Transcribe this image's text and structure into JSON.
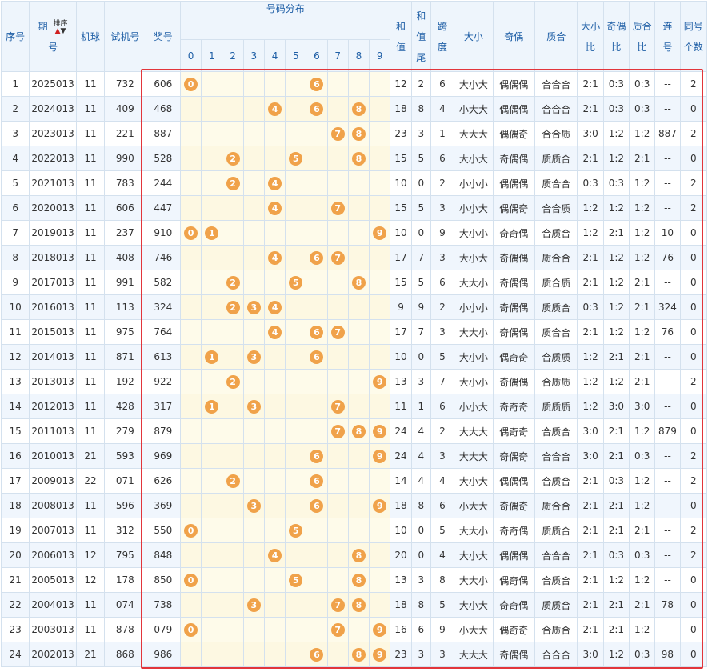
{
  "headers": {
    "idx": "序号",
    "period_top": "期",
    "period_bottom": "号",
    "sort_label": "排序",
    "machine": "机球",
    "test": "试机号",
    "prize": "奖号",
    "dist": "号码分布",
    "digits": [
      "0",
      "1",
      "2",
      "3",
      "4",
      "5",
      "6",
      "7",
      "8",
      "9"
    ],
    "sum_top": "和",
    "sum_bottom": "值",
    "tail_1": "和",
    "tail_2": "值",
    "tail_3": "尾",
    "span_top": "跨",
    "span_bottom": "度",
    "size": "大小",
    "parity": "奇偶",
    "prime": "质合",
    "size_ratio_top": "大小",
    "size_ratio_bottom": "比",
    "parity_ratio_top": "奇偶",
    "parity_ratio_bottom": "比",
    "prime_ratio_top": "质合",
    "prime_ratio_bottom": "比",
    "consec_top": "连",
    "consec_bottom": "号",
    "same_top": "同号",
    "same_bottom": "个数"
  },
  "rows": [
    {
      "idx": "1",
      "period": "2025013",
      "machine": "11",
      "test": "732",
      "prize": "606",
      "balls": [
        "0",
        "6"
      ],
      "sum": "12",
      "tail": "2",
      "span": "6",
      "size": "大小大",
      "parity": "偶偶偶",
      "prime": "合合合",
      "sr": "2:1",
      "pr": "0:3",
      "qr": "0:3",
      "consec": "--",
      "same": "2"
    },
    {
      "idx": "2",
      "period": "2024013",
      "machine": "11",
      "test": "409",
      "prize": "468",
      "balls": [
        "4",
        "6",
        "8"
      ],
      "sum": "18",
      "tail": "8",
      "span": "4",
      "size": "小大大",
      "parity": "偶偶偶",
      "prime": "合合合",
      "sr": "2:1",
      "pr": "0:3",
      "qr": "0:3",
      "consec": "--",
      "same": "0"
    },
    {
      "idx": "3",
      "period": "2023013",
      "machine": "11",
      "test": "221",
      "prize": "887",
      "balls": [
        "7",
        "8"
      ],
      "sum": "23",
      "tail": "3",
      "span": "1",
      "size": "大大大",
      "parity": "偶偶奇",
      "prime": "合合质",
      "sr": "3:0",
      "pr": "1:2",
      "qr": "1:2",
      "consec": "887",
      "same": "2"
    },
    {
      "idx": "4",
      "period": "2022013",
      "machine": "11",
      "test": "990",
      "prize": "528",
      "balls": [
        "2",
        "5",
        "8"
      ],
      "sum": "15",
      "tail": "5",
      "span": "6",
      "size": "大小大",
      "parity": "奇偶偶",
      "prime": "质质合",
      "sr": "2:1",
      "pr": "1:2",
      "qr": "2:1",
      "consec": "--",
      "same": "0"
    },
    {
      "idx": "5",
      "period": "2021013",
      "machine": "11",
      "test": "783",
      "prize": "244",
      "balls": [
        "2",
        "4"
      ],
      "sum": "10",
      "tail": "0",
      "span": "2",
      "size": "小小小",
      "parity": "偶偶偶",
      "prime": "质合合",
      "sr": "0:3",
      "pr": "0:3",
      "qr": "1:2",
      "consec": "--",
      "same": "2"
    },
    {
      "idx": "6",
      "period": "2020013",
      "machine": "11",
      "test": "606",
      "prize": "447",
      "balls": [
        "4",
        "7"
      ],
      "sum": "15",
      "tail": "5",
      "span": "3",
      "size": "小小大",
      "parity": "偶偶奇",
      "prime": "合合质",
      "sr": "1:2",
      "pr": "1:2",
      "qr": "1:2",
      "consec": "--",
      "same": "2"
    },
    {
      "idx": "7",
      "period": "2019013",
      "machine": "11",
      "test": "237",
      "prize": "910",
      "balls": [
        "0",
        "1",
        "9"
      ],
      "sum": "10",
      "tail": "0",
      "span": "9",
      "size": "大小小",
      "parity": "奇奇偶",
      "prime": "合质合",
      "sr": "1:2",
      "pr": "2:1",
      "qr": "1:2",
      "consec": "10",
      "same": "0"
    },
    {
      "idx": "8",
      "period": "2018013",
      "machine": "11",
      "test": "408",
      "prize": "746",
      "balls": [
        "4",
        "6",
        "7"
      ],
      "sum": "17",
      "tail": "7",
      "span": "3",
      "size": "大小大",
      "parity": "奇偶偶",
      "prime": "质合合",
      "sr": "2:1",
      "pr": "1:2",
      "qr": "1:2",
      "consec": "76",
      "same": "0"
    },
    {
      "idx": "9",
      "period": "2017013",
      "machine": "11",
      "test": "991",
      "prize": "582",
      "balls": [
        "2",
        "5",
        "8"
      ],
      "sum": "15",
      "tail": "5",
      "span": "6",
      "size": "大大小",
      "parity": "奇偶偶",
      "prime": "质合质",
      "sr": "2:1",
      "pr": "1:2",
      "qr": "2:1",
      "consec": "--",
      "same": "0"
    },
    {
      "idx": "10",
      "period": "2016013",
      "machine": "11",
      "test": "113",
      "prize": "324",
      "balls": [
        "2",
        "3",
        "4"
      ],
      "sum": "9",
      "tail": "9",
      "span": "2",
      "size": "小小小",
      "parity": "奇偶偶",
      "prime": "质质合",
      "sr": "0:3",
      "pr": "1:2",
      "qr": "2:1",
      "consec": "324",
      "same": "0"
    },
    {
      "idx": "11",
      "period": "2015013",
      "machine": "11",
      "test": "975",
      "prize": "764",
      "balls": [
        "4",
        "6",
        "7"
      ],
      "sum": "17",
      "tail": "7",
      "span": "3",
      "size": "大大小",
      "parity": "奇偶偶",
      "prime": "质合合",
      "sr": "2:1",
      "pr": "1:2",
      "qr": "1:2",
      "consec": "76",
      "same": "0"
    },
    {
      "idx": "12",
      "period": "2014013",
      "machine": "11",
      "test": "871",
      "prize": "613",
      "balls": [
        "1",
        "3",
        "6"
      ],
      "sum": "10",
      "tail": "0",
      "span": "5",
      "size": "大小小",
      "parity": "偶奇奇",
      "prime": "合质质",
      "sr": "1:2",
      "pr": "2:1",
      "qr": "2:1",
      "consec": "--",
      "same": "0"
    },
    {
      "idx": "13",
      "period": "2013013",
      "machine": "11",
      "test": "192",
      "prize": "922",
      "balls": [
        "2",
        "9"
      ],
      "sum": "13",
      "tail": "3",
      "span": "7",
      "size": "大小小",
      "parity": "奇偶偶",
      "prime": "合质质",
      "sr": "1:2",
      "pr": "1:2",
      "qr": "2:1",
      "consec": "--",
      "same": "2"
    },
    {
      "idx": "14",
      "period": "2012013",
      "machine": "11",
      "test": "428",
      "prize": "317",
      "balls": [
        "1",
        "3",
        "7"
      ],
      "sum": "11",
      "tail": "1",
      "span": "6",
      "size": "小小大",
      "parity": "奇奇奇",
      "prime": "质质质",
      "sr": "1:2",
      "pr": "3:0",
      "qr": "3:0",
      "consec": "--",
      "same": "0"
    },
    {
      "idx": "15",
      "period": "2011013",
      "machine": "11",
      "test": "279",
      "prize": "879",
      "balls": [
        "7",
        "8",
        "9"
      ],
      "sum": "24",
      "tail": "4",
      "span": "2",
      "size": "大大大",
      "parity": "偶奇奇",
      "prime": "合质合",
      "sr": "3:0",
      "pr": "2:1",
      "qr": "1:2",
      "consec": "879",
      "same": "0"
    },
    {
      "idx": "16",
      "period": "2010013",
      "machine": "21",
      "test": "593",
      "prize": "969",
      "balls": [
        "6",
        "9"
      ],
      "sum": "24",
      "tail": "4",
      "span": "3",
      "size": "大大大",
      "parity": "奇偶奇",
      "prime": "合合合",
      "sr": "3:0",
      "pr": "2:1",
      "qr": "0:3",
      "consec": "--",
      "same": "2"
    },
    {
      "idx": "17",
      "period": "2009013",
      "machine": "22",
      "test": "071",
      "prize": "626",
      "balls": [
        "2",
        "6"
      ],
      "sum": "14",
      "tail": "4",
      "span": "4",
      "size": "大小大",
      "parity": "偶偶偶",
      "prime": "合质合",
      "sr": "2:1",
      "pr": "0:3",
      "qr": "1:2",
      "consec": "--",
      "same": "2"
    },
    {
      "idx": "18",
      "period": "2008013",
      "machine": "11",
      "test": "596",
      "prize": "369",
      "balls": [
        "3",
        "6",
        "9"
      ],
      "sum": "18",
      "tail": "8",
      "span": "6",
      "size": "小大大",
      "parity": "奇偶奇",
      "prime": "质合合",
      "sr": "2:1",
      "pr": "2:1",
      "qr": "1:2",
      "consec": "--",
      "same": "0"
    },
    {
      "idx": "19",
      "period": "2007013",
      "machine": "11",
      "test": "312",
      "prize": "550",
      "balls": [
        "0",
        "5"
      ],
      "sum": "10",
      "tail": "0",
      "span": "5",
      "size": "大大小",
      "parity": "奇奇偶",
      "prime": "质质合",
      "sr": "2:1",
      "pr": "2:1",
      "qr": "2:1",
      "consec": "--",
      "same": "2"
    },
    {
      "idx": "20",
      "period": "2006013",
      "machine": "12",
      "test": "795",
      "prize": "848",
      "balls": [
        "4",
        "8"
      ],
      "sum": "20",
      "tail": "0",
      "span": "4",
      "size": "大小大",
      "parity": "偶偶偶",
      "prime": "合合合",
      "sr": "2:1",
      "pr": "0:3",
      "qr": "0:3",
      "consec": "--",
      "same": "2"
    },
    {
      "idx": "21",
      "period": "2005013",
      "machine": "12",
      "test": "178",
      "prize": "850",
      "balls": [
        "0",
        "5",
        "8"
      ],
      "sum": "13",
      "tail": "3",
      "span": "8",
      "size": "大大小",
      "parity": "偶奇偶",
      "prime": "合质合",
      "sr": "2:1",
      "pr": "1:2",
      "qr": "1:2",
      "consec": "--",
      "same": "0"
    },
    {
      "idx": "22",
      "period": "2004013",
      "machine": "11",
      "test": "074",
      "prize": "738",
      "balls": [
        "3",
        "7",
        "8"
      ],
      "sum": "18",
      "tail": "8",
      "span": "5",
      "size": "大小大",
      "parity": "奇奇偶",
      "prime": "质质合",
      "sr": "2:1",
      "pr": "2:1",
      "qr": "2:1",
      "consec": "78",
      "same": "0"
    },
    {
      "idx": "23",
      "period": "2003013",
      "machine": "11",
      "test": "878",
      "prize": "079",
      "balls": [
        "0",
        "7",
        "9"
      ],
      "sum": "16",
      "tail": "6",
      "span": "9",
      "size": "小大大",
      "parity": "偶奇奇",
      "prime": "合质合",
      "sr": "2:1",
      "pr": "2:1",
      "qr": "1:2",
      "consec": "--",
      "same": "0"
    },
    {
      "idx": "24",
      "period": "2002013",
      "machine": "21",
      "test": "868",
      "prize": "986",
      "balls": [
        "6",
        "8",
        "9"
      ],
      "sum": "23",
      "tail": "3",
      "span": "3",
      "size": "大大大",
      "parity": "奇偶偶",
      "prime": "合合合",
      "sr": "3:0",
      "pr": "1:2",
      "qr": "0:3",
      "consec": "98",
      "same": "0"
    }
  ],
  "colors": {
    "ball": "#f0a24a",
    "header_text": "#1f5fa6",
    "highlight": "#e2353b"
  }
}
